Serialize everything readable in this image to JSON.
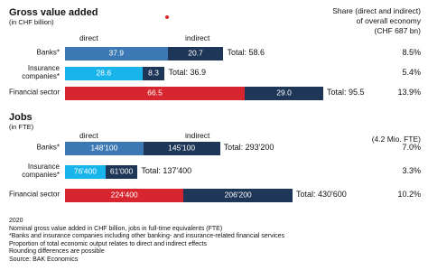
{
  "chart_data": [
    {
      "type": "bar",
      "orientation": "horizontal",
      "stacked": true,
      "title": "Gross value added",
      "subtitle": "(in CHF billion)",
      "share_header": [
        "Share (direct and indirect)",
        "of overall economy",
        "(CHF 687 bn)"
      ],
      "categories": [
        "Banks*",
        "Insurance\ncompanies*",
        "Financial sector"
      ],
      "series": [
        {
          "name": "direct",
          "colors": [
            "#3c79b4",
            "#18b4ec",
            "#d7262f"
          ],
          "values": [
            37.9,
            28.6,
            66.5
          ],
          "value_labels": [
            "37.9",
            "28.6",
            "66.5"
          ]
        },
        {
          "name": "indirect",
          "colors": [
            "#1e3657",
            "#1e3657",
            "#1e3657"
          ],
          "values": [
            20.7,
            8.3,
            29.0
          ],
          "value_labels": [
            "20.7",
            "8.3",
            "29.0"
          ]
        }
      ],
      "total_labels": [
        "Total: 58.6",
        "Total: 36.9",
        "Total: 95.5"
      ],
      "share_labels": [
        "8.5%",
        "5.4%",
        "13.9%"
      ]
    },
    {
      "type": "bar",
      "orientation": "horizontal",
      "stacked": true,
      "title": "Jobs",
      "subtitle": "(in FTE)",
      "share_header": [
        "(4.2 Mio. FTE)"
      ],
      "categories": [
        "Banks*",
        "Insurance\ncompanies*",
        "Financial sector"
      ],
      "series": [
        {
          "name": "direct",
          "colors": [
            "#3c79b4",
            "#18b4ec",
            "#d7262f"
          ],
          "values": [
            148100,
            76400,
            224400
          ],
          "value_labels": [
            "148'100",
            "76'400",
            "224'400"
          ]
        },
        {
          "name": "indirect",
          "colors": [
            "#1e3657",
            "#1e3657",
            "#1e3657"
          ],
          "values": [
            145100,
            61000,
            206200
          ],
          "value_labels": [
            "145'100",
            "61'000",
            "206'200"
          ]
        }
      ],
      "total_labels": [
        "Total: 293'200",
        "Total: 137'400",
        "Total: 430'600"
      ],
      "share_labels": [
        "7.0%",
        "3.3%",
        "10.2%"
      ]
    }
  ],
  "notes": [
    "2020",
    "Nominal gross value added in CHF billion, jobs in full-time equivalents (FTE)",
    "*Banks and insurance companies including other banking- and insurance-related financial services",
    "Proportion of total economic output relates to direct and indirect effects",
    "Rounding differences are possible",
    "Source: BAK Economics"
  ]
}
